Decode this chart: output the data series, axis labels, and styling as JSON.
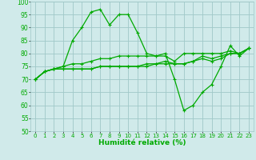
{
  "xlabel": "Humidité relative (%)",
  "xlim": [
    -0.5,
    23.5
  ],
  "ylim": [
    50,
    100
  ],
  "yticks": [
    50,
    55,
    60,
    65,
    70,
    75,
    80,
    85,
    90,
    95,
    100
  ],
  "xticks": [
    0,
    1,
    2,
    3,
    4,
    5,
    6,
    7,
    8,
    9,
    10,
    11,
    12,
    13,
    14,
    15,
    16,
    17,
    18,
    19,
    20,
    21,
    22,
    23
  ],
  "background_color": "#d0eaea",
  "grid_color": "#a0c8c8",
  "line_color": "#00aa00",
  "lines": [
    [
      70,
      73,
      74,
      75,
      85,
      90,
      96,
      97,
      91,
      95,
      95,
      88,
      80,
      79,
      80,
      70,
      58,
      60,
      65,
      68,
      75,
      83,
      79,
      82
    ],
    [
      70,
      73,
      74,
      75,
      76,
      76,
      77,
      78,
      78,
      79,
      79,
      79,
      79,
      79,
      79,
      77,
      80,
      80,
      80,
      80,
      80,
      81,
      80,
      82
    ],
    [
      70,
      73,
      74,
      74,
      74,
      74,
      74,
      75,
      75,
      75,
      75,
      75,
      76,
      76,
      77,
      76,
      76,
      77,
      79,
      78,
      79,
      80,
      80,
      82
    ],
    [
      70,
      73,
      74,
      74,
      74,
      74,
      74,
      75,
      75,
      75,
      75,
      75,
      75,
      76,
      76,
      76,
      76,
      77,
      78,
      77,
      78,
      80,
      80,
      82
    ]
  ]
}
